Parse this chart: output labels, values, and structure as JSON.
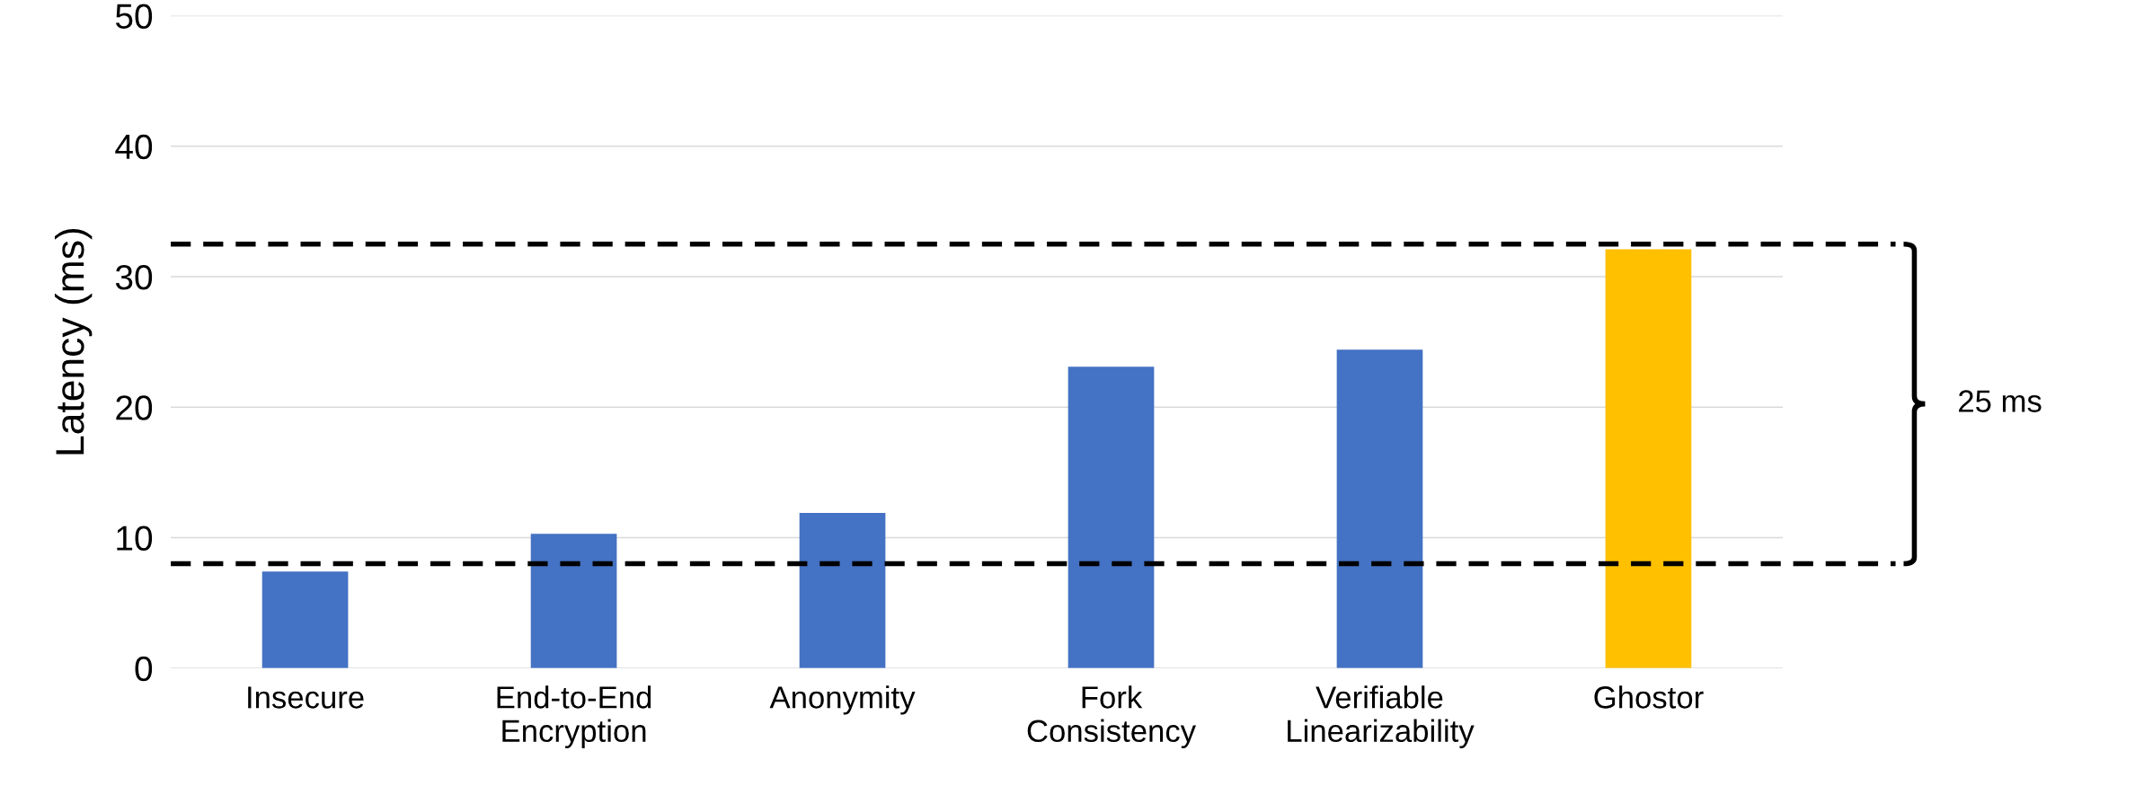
{
  "chart_data": {
    "type": "bar",
    "ylabel": "Latency (ms)",
    "categories": [
      "Insecure",
      "End-to-End\nEncryption",
      "Anonymity",
      "Fork\nConsistency",
      "Verifiable\nLinearizability",
      "Ghostor"
    ],
    "values": [
      7.4,
      10.3,
      11.9,
      23.1,
      24.4,
      32.1
    ],
    "colors": [
      "#4472c4",
      "#4472c4",
      "#4472c4",
      "#4472c4",
      "#4472c4",
      "#ffc000"
    ],
    "ylim": [
      0,
      50
    ],
    "yticks": [
      0,
      10,
      20,
      30,
      40,
      50
    ],
    "grid": "y",
    "ref_lines": [
      {
        "axis": "y",
        "value": 8,
        "color": "#000000",
        "line_style": "dashed"
      },
      {
        "axis": "y",
        "value": 32.5,
        "color": "#000000",
        "line_style": "dashed"
      }
    ],
    "annotations": [
      "25 ms"
    ]
  }
}
